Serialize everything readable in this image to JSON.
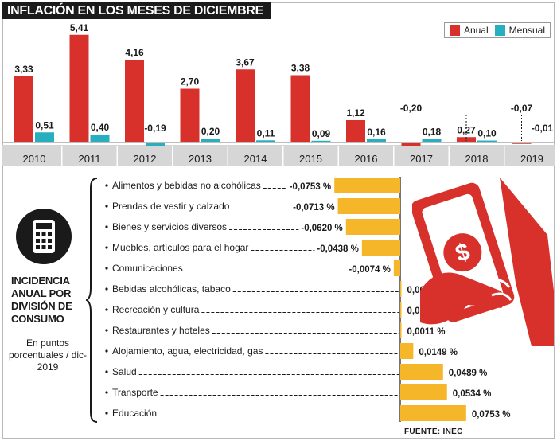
{
  "header": {
    "title": "INFLACIÓN EN LOS MESES DE DICIEMBRE"
  },
  "legend": {
    "annual": "Anual",
    "monthly": "Mensual"
  },
  "colors": {
    "annual": "#d8312b",
    "monthly": "#27afc0",
    "bars": "#f6b62a",
    "dark": "#1a1a1a",
    "strip": "#d6d6d6"
  },
  "chart_data": [
    {
      "type": "bar",
      "title": "INFLACIÓN EN LOS MESES DE DICIEMBRE",
      "categories": [
        "2010",
        "2011",
        "2012",
        "2013",
        "2014",
        "2015",
        "2016",
        "2017",
        "2018",
        "2019"
      ],
      "series": [
        {
          "name": "Anual",
          "values": [
            3.33,
            5.41,
            4.16,
            2.7,
            3.67,
            3.38,
            1.12,
            -0.2,
            0.27,
            -0.07
          ],
          "labels": [
            "3,33",
            "5,41",
            "4,16",
            "2,70",
            "3,67",
            "3,38",
            "1,12",
            "-0,20",
            "0,27",
            "-0,07"
          ]
        },
        {
          "name": "Mensual",
          "values": [
            0.51,
            0.4,
            -0.19,
            0.2,
            0.11,
            0.09,
            0.16,
            0.18,
            0.1,
            -0.01
          ],
          "labels": [
            "0,51",
            "0,40",
            "-0,19",
            "0,20",
            "0,11",
            "0,09",
            "0,16",
            "0,18",
            "0,10",
            "-0,01"
          ]
        }
      ],
      "legend_position": "top-right",
      "grid": false
    },
    {
      "type": "bar",
      "orientation": "horizontal",
      "title": "INCIDENCIA ANUAL POR DIVISIÓN DE CONSUMO",
      "subtitle": "En puntos porcentuales / dic-2019",
      "categories": [
        "Alimentos y bebidas no alcohólicas",
        "Prendas de vestir y calzado",
        "Bienes y servicios diversos",
        "Muebles, artículos para el hogar",
        "Comunicaciones",
        "Bebidas alcohólicas, tabaco",
        "Recreación y cultura",
        "Restaurantes y hoteles",
        "Alojamiento, agua, electricidad, gas",
        "Salud",
        "Transporte",
        "Educación"
      ],
      "values": [
        -0.0753,
        -0.0713,
        -0.062,
        -0.0438,
        -0.0074,
        0.0003,
        0.0005,
        0.0011,
        0.0149,
        0.0489,
        0.0534,
        0.0753
      ],
      "labels": [
        "-0,0753 %",
        "-0,0713 %",
        "-0,0620 %",
        "-0,0438 %",
        "-0,0074 %",
        "0,0003 %",
        "0,0005 %",
        "0,0011 %",
        "0,0149 %",
        "0,0489 %",
        "0,0534 %",
        "0,0753 %"
      ],
      "grid": false
    }
  ],
  "side": {
    "title": "INCIDENCIA ANUAL POR DIVISIÓN DE CONSUMO",
    "subtitle": "En puntos porcentuales / dic-2019"
  },
  "source": "FUENTE: INEC",
  "icons": {
    "calculator": "calculator-icon",
    "money": "banknote-hand-icon"
  }
}
